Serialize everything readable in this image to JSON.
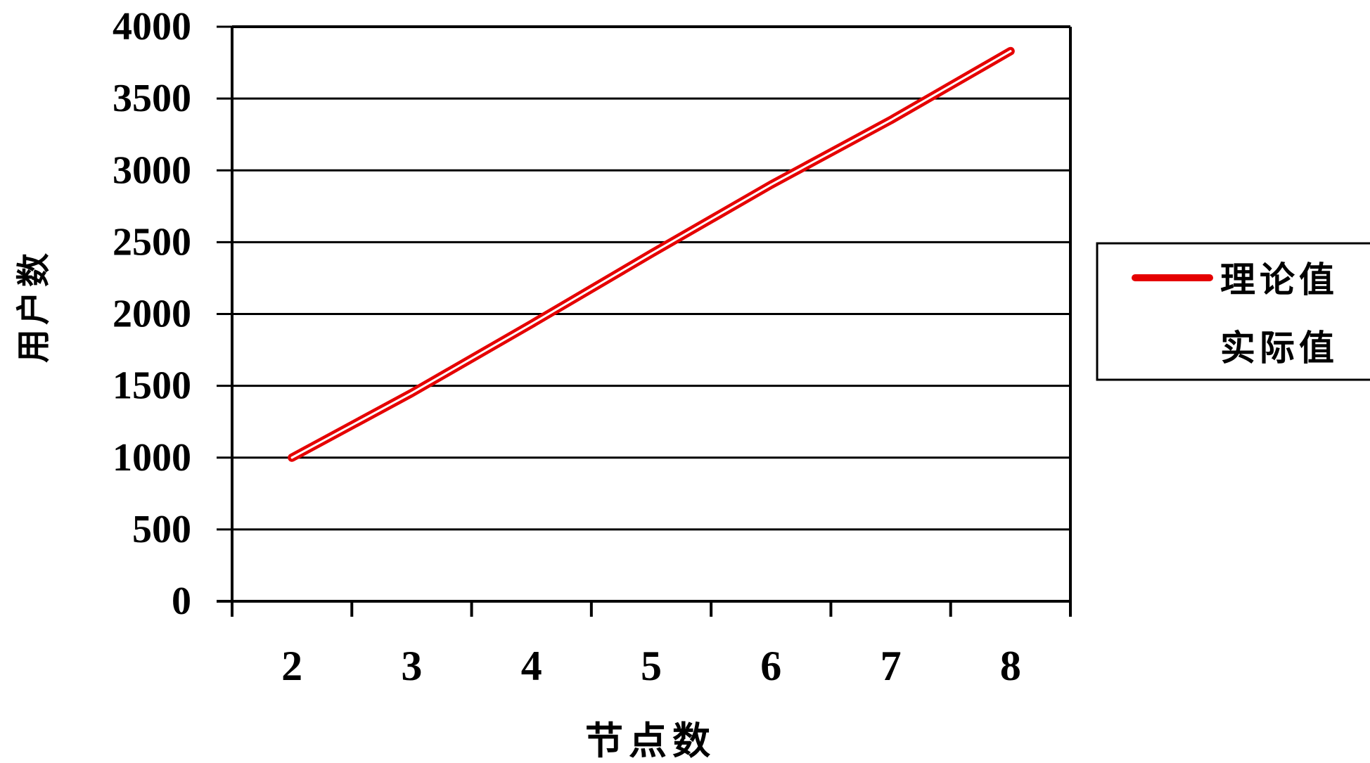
{
  "chart_data": {
    "type": "line",
    "title": "",
    "xlabel": "节点数",
    "ylabel": "用户数",
    "categories": [
      "2",
      "3",
      "4",
      "5",
      "6",
      "7",
      "8"
    ],
    "x": [
      2,
      3,
      4,
      5,
      6,
      7,
      8
    ],
    "ylim": [
      0,
      4000
    ],
    "yticks": [
      "4000",
      "3500",
      "3000",
      "2500",
      "2000",
      "1500",
      "1000",
      "500",
      "0"
    ],
    "ytick_values": [
      4000,
      3500,
      3000,
      2500,
      2000,
      1500,
      1000,
      500,
      0
    ],
    "grid": true,
    "legend_position": "right",
    "series": [
      {
        "name": "理论值",
        "color": "#e50000",
        "values": [
          1000,
          1450,
          1930,
          2420,
          2900,
          3350,
          3830
        ]
      },
      {
        "name": "实际值",
        "color": "#ffffff",
        "values": [
          1000,
          1450,
          1930,
          2420,
          2900,
          3350,
          3830
        ]
      }
    ]
  }
}
